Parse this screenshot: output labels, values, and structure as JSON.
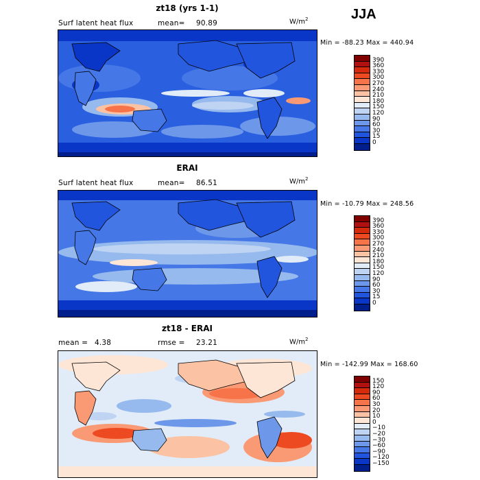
{
  "season": "JJA",
  "panels": [
    {
      "title": "zt18 (yrs 1-1)",
      "variable": "Surf latent heat flux",
      "stat_label": "mean=",
      "stat_value": "90.89",
      "units_base": "W/m",
      "units_exp": "2",
      "minmax": "Min = -88.23 Max = 440.94",
      "colorbar": {
        "labels": [
          "390",
          "360",
          "330",
          "300",
          "270",
          "240",
          "210",
          "180",
          "150",
          "120",
          "90",
          "60",
          "30",
          "15",
          "0"
        ],
        "colors": [
          "#800000",
          "#b01010",
          "#d62a0c",
          "#ee4a22",
          "#f7734a",
          "#f99a74",
          "#fbc2a4",
          "#fde6d6",
          "#e2ecf8",
          "#bfd4f2",
          "#96b9ee",
          "#6d98ea",
          "#4577e6",
          "#2255de",
          "#0a36c8",
          "#001e8c"
        ]
      }
    },
    {
      "title": "ERAI",
      "variable": "Surf latent heat flux",
      "stat_label": "mean=",
      "stat_value": "86.51",
      "units_base": "W/m",
      "units_exp": "2",
      "minmax": "Min = -10.79 Max = 248.56",
      "colorbar": {
        "labels": [
          "390",
          "360",
          "330",
          "300",
          "270",
          "240",
          "210",
          "180",
          "150",
          "120",
          "90",
          "60",
          "30",
          "15",
          "0"
        ],
        "colors": [
          "#800000",
          "#b01010",
          "#d62a0c",
          "#ee4a22",
          "#f7734a",
          "#f99a74",
          "#fbc2a4",
          "#fde6d6",
          "#e2ecf8",
          "#bfd4f2",
          "#96b9ee",
          "#6d98ea",
          "#4577e6",
          "#2255de",
          "#0a36c8",
          "#001e8c"
        ]
      }
    },
    {
      "title": "zt18 - ERAI",
      "stat_label": "mean =",
      "stat_value": "4.38",
      "rmse_label": "rmse =",
      "rmse_value": "23.21",
      "units_base": "W/m",
      "units_exp": "2",
      "minmax": "Min = -142.99 Max = 168.60",
      "colorbar": {
        "labels": [
          "150",
          "120",
          "90",
          "60",
          "30",
          "20",
          "10",
          "0",
          "−10",
          "−20",
          "−30",
          "−60",
          "−90",
          "−120",
          "−150"
        ],
        "colors": [
          "#800000",
          "#b01010",
          "#d62a0c",
          "#ee4a22",
          "#f7734a",
          "#f99a74",
          "#fbc2a4",
          "#fde6d6",
          "#e2ecf8",
          "#bfd4f2",
          "#96b9ee",
          "#6d98ea",
          "#4577e6",
          "#2255de",
          "#0a36c8",
          "#001e8c"
        ]
      }
    }
  ]
}
